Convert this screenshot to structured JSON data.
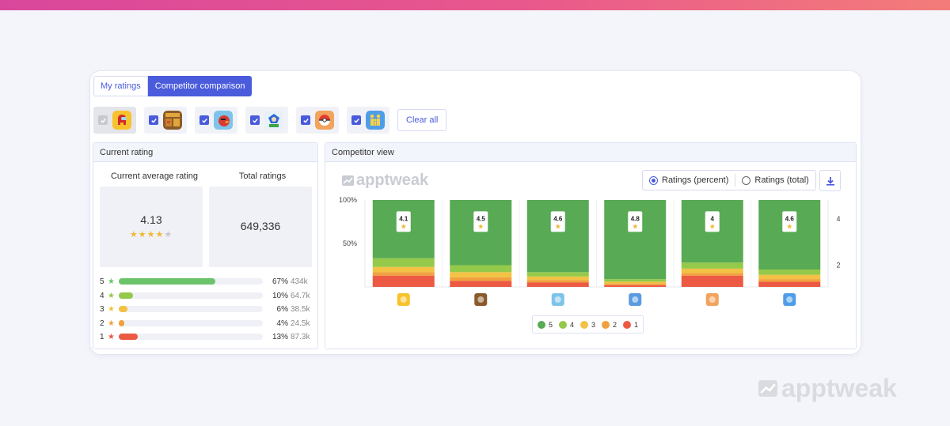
{
  "tabs": [
    {
      "label": "My ratings",
      "active": false
    },
    {
      "label": "Competitor comparison",
      "active": true
    }
  ],
  "apps": [
    {
      "icon": "among-us-app-icon",
      "checked": true,
      "disabled": true,
      "bg": "#f7c22c"
    },
    {
      "icon": "temple-run-app-icon",
      "checked": true,
      "disabled": false,
      "bg": "#8a5a2b"
    },
    {
      "icon": "angry-birds-app-icon",
      "checked": true,
      "disabled": false,
      "bg": "#7ec4ea"
    },
    {
      "icon": "sonic-app-icon",
      "checked": true,
      "disabled": false,
      "bg": "#5a9be0"
    },
    {
      "icon": "pokemon-go-app-icon",
      "checked": true,
      "disabled": false,
      "bg": "#f2a35e"
    },
    {
      "icon": "family-app-icon",
      "checked": true,
      "disabled": false,
      "bg": "#4e9de8"
    }
  ],
  "clear_all_label": "Clear all",
  "current_rating": {
    "title": "Current rating",
    "avg_label": "Current average rating",
    "total_label": "Total ratings",
    "avg_value": "4.13",
    "avg_stars": 4,
    "total_value": "649,336",
    "distribution": [
      {
        "star": "5",
        "fraction": 0.67,
        "pct": "67%",
        "count": "434k",
        "color": "#6cc46a"
      },
      {
        "star": "4",
        "fraction": 0.1,
        "pct": "10%",
        "count": "64.7k",
        "color": "#94c94a"
      },
      {
        "star": "3",
        "fraction": 0.06,
        "pct": "6%",
        "count": "38.5k",
        "color": "#f2c245"
      },
      {
        "star": "2",
        "fraction": 0.04,
        "pct": "4%",
        "count": "24.5k",
        "color": "#f0a13d"
      },
      {
        "star": "1",
        "fraction": 0.13,
        "pct": "13%",
        "count": "87.3k",
        "color": "#ec5a43"
      }
    ]
  },
  "competitor_view": {
    "title": "Competitor view",
    "brand": "apptweak",
    "radio_percent_label": "Ratings (percent)",
    "radio_total_label": "Ratings (total)",
    "selected": "percent"
  },
  "watermark": "apptweak",
  "colors": {
    "accent": "#4a5bdc",
    "s5": "#58aa55",
    "s4": "#94c94a",
    "s3": "#f2c245",
    "s2": "#f0a13d",
    "s1": "#ec5a43",
    "star": "#f2b731"
  },
  "chart_data": {
    "type": "bar",
    "stacked": true,
    "categories": [
      "among-us-app-icon",
      "temple-run-app-icon",
      "angry-birds-app-icon",
      "sonic-app-icon",
      "pokemon-go-app-icon",
      "family-app-icon"
    ],
    "yticks_left": [
      "100%",
      "50%"
    ],
    "yticks_right": [
      "4",
      "2"
    ],
    "series": [
      {
        "name": "5",
        "values": [
          67,
          75,
          83,
          91,
          72,
          80
        ]
      },
      {
        "name": "4",
        "values": [
          10,
          8,
          5,
          3,
          7,
          6
        ]
      },
      {
        "name": "3",
        "values": [
          6,
          6,
          4,
          2,
          5,
          5
        ]
      },
      {
        "name": "2",
        "values": [
          4,
          4,
          3,
          2,
          3,
          3
        ]
      },
      {
        "name": "1",
        "values": [
          13,
          7,
          5,
          2,
          13,
          6
        ]
      }
    ],
    "averages": [
      "4.1",
      "4.5",
      "4.6",
      "4.8",
      "4",
      "4.6"
    ],
    "legend": [
      "5",
      "4",
      "3",
      "2",
      "1"
    ],
    "ylim": [
      0,
      100
    ]
  }
}
